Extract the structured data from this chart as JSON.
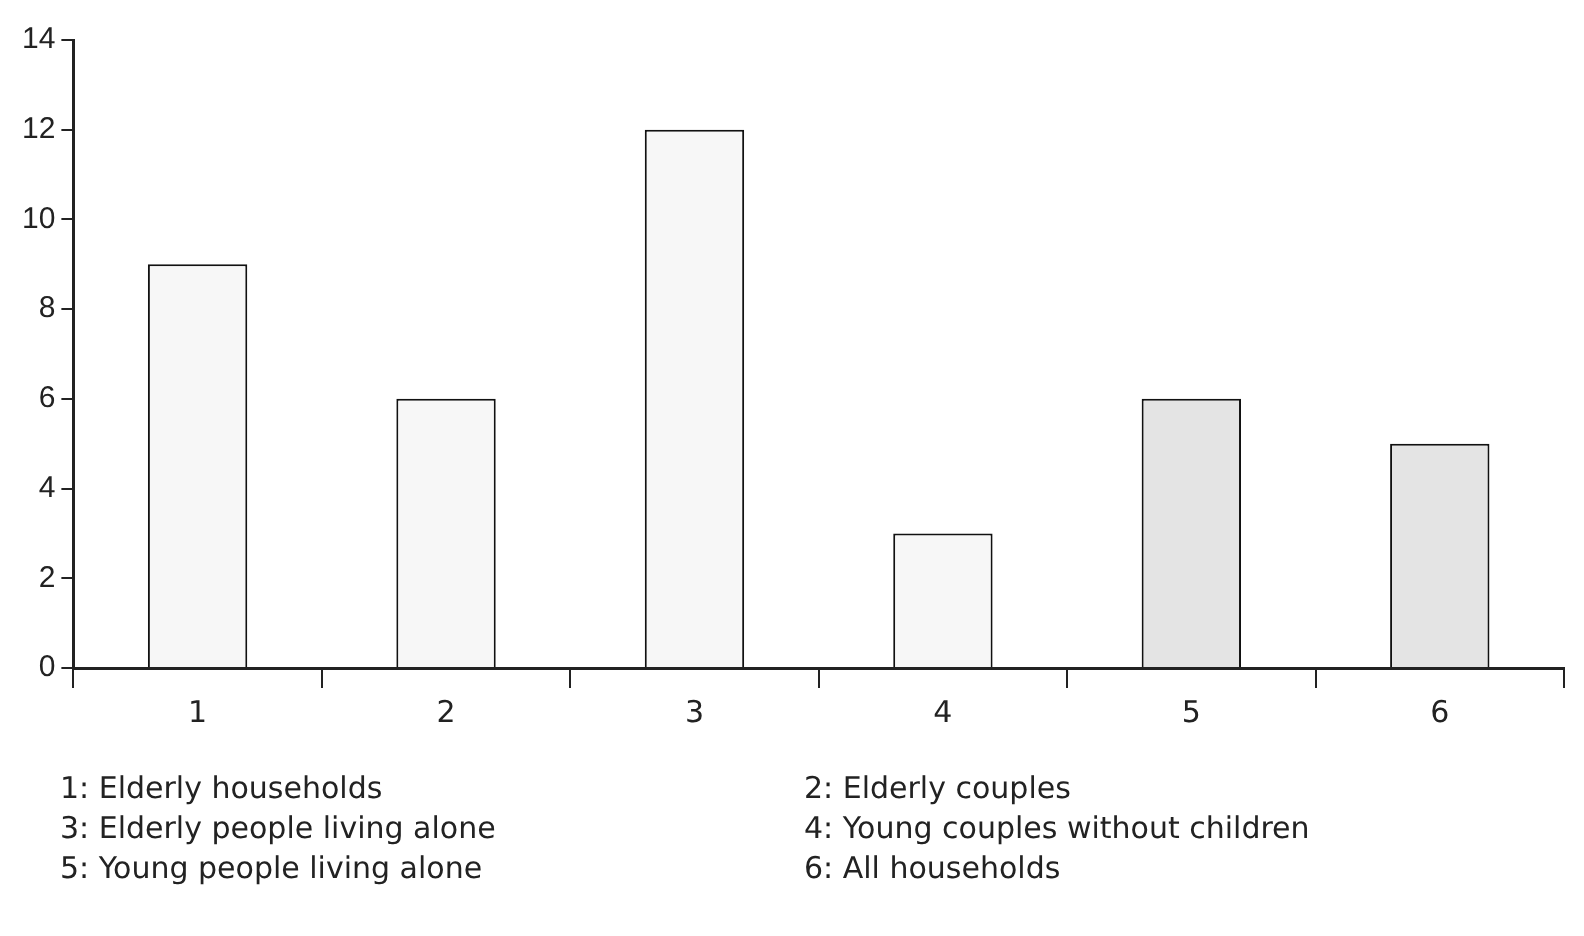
{
  "chart_data": {
    "type": "bar",
    "categories": [
      "1",
      "2",
      "3",
      "4",
      "5",
      "6"
    ],
    "values": [
      9,
      6,
      12,
      3,
      6,
      5
    ],
    "colors": [
      "#f7f7f7",
      "#f7f7f7",
      "#f7f7f7",
      "#f7f7f7",
      "#e4e4e4",
      "#e4e4e4"
    ],
    "ylim": [
      0,
      14
    ],
    "yticks": [
      0,
      2,
      4,
      6,
      8,
      10,
      12,
      14
    ],
    "grid": false,
    "legend": false,
    "annotations": [
      "1: Elderly households",
      "2: Elderly couples",
      "3: Elderly people living alone",
      "4: Young couples without children",
      "5: Young people living alone",
      "6: All households"
    ]
  }
}
